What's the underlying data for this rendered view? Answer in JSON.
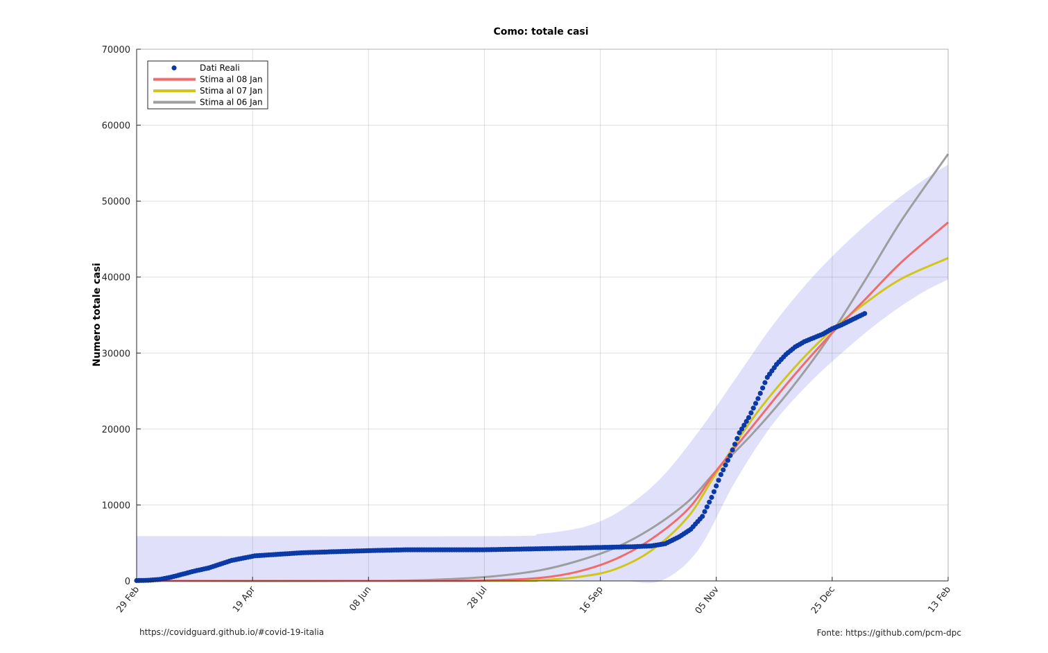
{
  "chart_data": {
    "type": "line",
    "title": "Como: totale casi",
    "xlabel": "",
    "ylabel": "Numero totale casi",
    "x_range": [
      "2020-02-29",
      "2021-02-13"
    ],
    "x_ticks": [
      {
        "date": "2020-02-29",
        "label": "29 Feb"
      },
      {
        "date": "2020-04-19",
        "label": "19 Apr"
      },
      {
        "date": "2020-06-08",
        "label": "08 Jun"
      },
      {
        "date": "2020-07-28",
        "label": "28 Jul"
      },
      {
        "date": "2020-09-16",
        "label": "16 Sep"
      },
      {
        "date": "2020-11-05",
        "label": "05 Nov"
      },
      {
        "date": "2020-12-25",
        "label": "25 Dec"
      },
      {
        "date": "2021-02-13",
        "label": "13 Feb"
      }
    ],
    "ylim": [
      0,
      70000
    ],
    "y_ticks": [
      0,
      10000,
      20000,
      30000,
      40000,
      50000,
      60000,
      70000
    ],
    "grid": true,
    "legend_position": "top-left",
    "confidence_band": {
      "color": "#e0e0fa",
      "x": [
        "2020-02-29",
        "2020-08-01",
        "2020-08-21",
        "2020-09-10",
        "2020-09-26",
        "2020-10-12",
        "2020-10-28",
        "2020-11-13",
        "2020-11-29",
        "2020-12-15",
        "2020-12-31",
        "2021-01-16",
        "2021-02-01",
        "2021-02-13"
      ],
      "lower": [
        0,
        0,
        0,
        0,
        0,
        0,
        4000,
        13000,
        20500,
        26000,
        30500,
        34500,
        37800,
        39700
      ],
      "upper": [
        5900,
        5900,
        6200,
        7200,
        9500,
        13500,
        19500,
        26500,
        33500,
        39500,
        44500,
        48800,
        52500,
        54800
      ]
    },
    "series": [
      {
        "name": "Dati Reali",
        "marker": "dot",
        "color": "#0b3aa6",
        "x": [
          "2020-02-29",
          "2020-03-05",
          "2020-03-10",
          "2020-03-15",
          "2020-03-20",
          "2020-03-25",
          "2020-03-31",
          "2020-04-05",
          "2020-04-10",
          "2020-04-15",
          "2020-04-20",
          "2020-04-25",
          "2020-04-30",
          "2020-05-05",
          "2020-05-10",
          "2020-05-20",
          "2020-05-30",
          "2020-06-10",
          "2020-06-25",
          "2020-07-10",
          "2020-07-28",
          "2020-08-15",
          "2020-09-01",
          "2020-09-16",
          "2020-09-30",
          "2020-10-08",
          "2020-10-14",
          "2020-10-20",
          "2020-10-25",
          "2020-10-30",
          "2020-11-03",
          "2020-11-07",
          "2020-11-11",
          "2020-11-15",
          "2020-11-19",
          "2020-11-23",
          "2020-11-27",
          "2020-12-01",
          "2020-12-05",
          "2020-12-09",
          "2020-12-13",
          "2020-12-17",
          "2020-12-21",
          "2020-12-25",
          "2020-12-29",
          "2021-01-02",
          "2021-01-08"
        ],
        "values": [
          50,
          80,
          200,
          500,
          900,
          1300,
          1700,
          2200,
          2700,
          3000,
          3300,
          3400,
          3500,
          3600,
          3700,
          3800,
          3900,
          4000,
          4100,
          4100,
          4100,
          4200,
          4300,
          4400,
          4500,
          4600,
          4900,
          5800,
          6800,
          8500,
          11000,
          14000,
          16500,
          19500,
          21500,
          24000,
          26800,
          28500,
          29800,
          30800,
          31500,
          32000,
          32500,
          33200,
          33700,
          34300,
          35200
        ]
      },
      {
        "name": "Stima al 08 Jan",
        "color": "#f26b6b",
        "x": [
          "2020-02-29",
          "2020-07-01",
          "2020-08-01",
          "2020-08-21",
          "2020-09-06",
          "2020-09-22",
          "2020-10-08",
          "2020-10-24",
          "2020-11-05",
          "2020-11-21",
          "2020-12-07",
          "2020-12-23",
          "2021-01-08",
          "2021-01-24",
          "2021-02-13"
        ],
        "values": [
          0,
          0,
          100,
          400,
          1200,
          2800,
          5500,
          9500,
          14500,
          20500,
          26500,
          32000,
          37000,
          42000,
          47200
        ]
      },
      {
        "name": "Stima al 07 Jan",
        "color": "#d1c617",
        "x": [
          "2020-02-29",
          "2020-08-01",
          "2020-08-21",
          "2020-09-06",
          "2020-09-22",
          "2020-10-08",
          "2020-10-24",
          "2020-11-05",
          "2020-11-21",
          "2020-12-07",
          "2020-12-23",
          "2021-01-08",
          "2021-01-24",
          "2021-02-13"
        ],
        "values": [
          0,
          0,
          100,
          500,
          1500,
          4000,
          8500,
          14200,
          21500,
          27500,
          32500,
          36500,
          39800,
          42500
        ]
      },
      {
        "name": "Stima al 06 Jan",
        "color": "#9e9e9e",
        "x": [
          "2020-02-29",
          "2020-06-10",
          "2020-07-10",
          "2020-08-01",
          "2020-08-21",
          "2020-09-06",
          "2020-09-22",
          "2020-10-08",
          "2020-10-24",
          "2020-11-05",
          "2020-11-21",
          "2020-12-07",
          "2020-12-23",
          "2021-01-08",
          "2021-01-24",
          "2021-02-13"
        ],
        "values": [
          0,
          0,
          200,
          600,
          1400,
          2600,
          4300,
          6900,
          10500,
          14500,
          19500,
          25200,
          31800,
          39500,
          47500,
          56200
        ]
      }
    ]
  },
  "footer": {
    "left": "https://covidguard.github.io/#covid-19-italia",
    "right": "Fonte: https://github.com/pcm-dpc"
  }
}
